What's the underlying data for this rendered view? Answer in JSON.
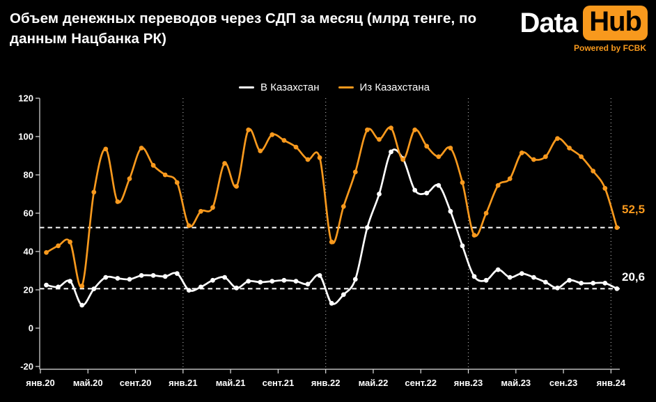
{
  "header": {
    "title": "Объем денежных переводов через СДП за месяц (млрд тенге, по данным Нацбанка РК)",
    "logo": {
      "part1": "Data",
      "part2": "Hub",
      "tagline": "Powered by FCBK"
    }
  },
  "colors": {
    "background": "#000000",
    "orange": "#F8991D",
    "white": "#FFFFFF",
    "axis": "#E0E0E0",
    "vgrid": "#B0B0B0",
    "reference_line": "#FFFFFF"
  },
  "legend": [
    {
      "label": "В Казахстан",
      "color": "#FFFFFF"
    },
    {
      "label": "Из Казахстана",
      "color": "#F8991D"
    }
  ],
  "annotations": [
    {
      "text": "52,5",
      "color": "#F8991D",
      "series": "Из Казахстана"
    },
    {
      "text": "20,6",
      "color": "#FFFFFF",
      "series": "В Казахстан"
    }
  ],
  "chart_data": {
    "type": "line",
    "title": "Объем денежных переводов через СДП за месяц (млрд тенге, по данным Нацбанка РК)",
    "xlabel": "",
    "ylabel": "",
    "ylim": [
      -20,
      120
    ],
    "y_ticks": [
      120,
      100,
      80,
      60,
      40,
      20,
      0,
      -20
    ],
    "x_tick_labels": [
      "янв.20",
      "май.20",
      "сент.20",
      "янв.21",
      "май.21",
      "сент.21",
      "янв.22",
      "май.22",
      "сент.22",
      "янв.23",
      "май.23",
      "сен.23",
      "янв.24"
    ],
    "vgrid_tick_indices": [
      3,
      6,
      9,
      12
    ],
    "legend_position": "top-center",
    "grid": "off",
    "x": [
      "2020-01",
      "2020-02",
      "2020-03",
      "2020-04",
      "2020-05",
      "2020-06",
      "2020-07",
      "2020-08",
      "2020-09",
      "2020-10",
      "2020-11",
      "2020-12",
      "2021-01",
      "2021-02",
      "2021-03",
      "2021-04",
      "2021-05",
      "2021-06",
      "2021-07",
      "2021-08",
      "2021-09",
      "2021-10",
      "2021-11",
      "2021-12",
      "2022-01",
      "2022-02",
      "2022-03",
      "2022-04",
      "2022-05",
      "2022-06",
      "2022-07",
      "2022-08",
      "2022-09",
      "2022-10",
      "2022-11",
      "2022-12",
      "2023-01",
      "2023-02",
      "2023-03",
      "2023-04",
      "2023-05",
      "2023-06",
      "2023-07",
      "2023-08",
      "2023-09",
      "2023-10",
      "2023-11",
      "2023-12",
      "2024-01"
    ],
    "series": [
      {
        "name": "В Казахстан",
        "color": "#FFFFFF",
        "values": [
          22.5,
          21.5,
          24.5,
          12,
          20.5,
          26.5,
          26,
          25.5,
          27.5,
          27.5,
          27,
          28.5,
          19.8,
          21.5,
          25,
          26.5,
          21,
          24.5,
          24,
          24.5,
          25,
          24.5,
          23,
          27.5,
          13,
          17.5,
          25.5,
          52.5,
          70,
          92,
          88.5,
          72,
          70.5,
          74.5,
          61,
          43,
          27,
          25,
          30.5,
          26.5,
          28.5,
          26.5,
          24,
          21,
          25,
          23.5,
          23.5,
          23.5,
          20.6
        ]
      },
      {
        "name": "Из Казахстана",
        "color": "#F8991D",
        "values": [
          39.5,
          43,
          45,
          22,
          71,
          93.5,
          66,
          78,
          94,
          85,
          80,
          76,
          53.5,
          61,
          63,
          86,
          74,
          103.5,
          92.5,
          101,
          98,
          94.5,
          88,
          89,
          45,
          63.5,
          81.5,
          103.5,
          98.5,
          104.5,
          88,
          103.5,
          95,
          89.5,
          94,
          76,
          48.5,
          60,
          74.5,
          78,
          91.5,
          88,
          89.5,
          99,
          94,
          89.5,
          82,
          73,
          52.5
        ]
      }
    ],
    "reference_lines": [
      {
        "value": 52.5,
        "label": "52,5",
        "color": "#F8991D"
      },
      {
        "value": 20.6,
        "label": "20,6",
        "color": "#FFFFFF"
      }
    ]
  }
}
